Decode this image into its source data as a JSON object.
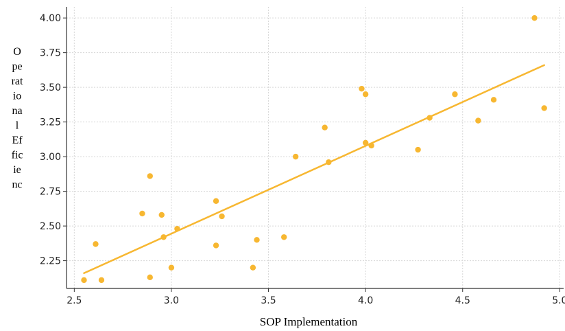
{
  "chart_data": {
    "type": "scatter",
    "title": "",
    "xlabel": "SOP Implementation",
    "ylabel": "Operational Efficienc",
    "ylabel_lines": [
      "O",
      "pe",
      "rat",
      "io",
      "na",
      "l",
      "Ef",
      "fic",
      "ie",
      "nc"
    ],
    "xlim": [
      2.46,
      5.02
    ],
    "ylim": [
      2.05,
      4.08
    ],
    "xticks": [
      2.5,
      3.0,
      3.5,
      4.0,
      4.5,
      5.0
    ],
    "xtick_labels": [
      "2.5",
      "3.0",
      "3.5",
      "4.0",
      "4.5",
      "5.0"
    ],
    "yticks": [
      2.25,
      2.5,
      2.75,
      3.0,
      3.25,
      3.5,
      3.75,
      4.0
    ],
    "ytick_labels": [
      "2.25",
      "2.50",
      "2.75",
      "3.00",
      "3.25",
      "3.50",
      "3.75",
      "4.00"
    ],
    "grid": true,
    "points": [
      {
        "x": 2.55,
        "y": 2.11
      },
      {
        "x": 2.61,
        "y": 2.37
      },
      {
        "x": 2.64,
        "y": 2.11
      },
      {
        "x": 2.85,
        "y": 2.59
      },
      {
        "x": 2.89,
        "y": 2.86
      },
      {
        "x": 2.89,
        "y": 2.13
      },
      {
        "x": 2.95,
        "y": 2.58
      },
      {
        "x": 2.96,
        "y": 2.42
      },
      {
        "x": 3.0,
        "y": 2.2
      },
      {
        "x": 3.03,
        "y": 2.48
      },
      {
        "x": 3.23,
        "y": 2.68
      },
      {
        "x": 3.23,
        "y": 2.36
      },
      {
        "x": 3.26,
        "y": 2.57
      },
      {
        "x": 3.42,
        "y": 2.2
      },
      {
        "x": 3.44,
        "y": 2.4
      },
      {
        "x": 3.58,
        "y": 2.42
      },
      {
        "x": 3.64,
        "y": 3.0
      },
      {
        "x": 3.79,
        "y": 3.21
      },
      {
        "x": 3.81,
        "y": 2.96
      },
      {
        "x": 3.98,
        "y": 3.49
      },
      {
        "x": 4.0,
        "y": 3.45
      },
      {
        "x": 4.0,
        "y": 3.1
      },
      {
        "x": 4.03,
        "y": 3.08
      },
      {
        "x": 4.27,
        "y": 3.05
      },
      {
        "x": 4.33,
        "y": 3.28
      },
      {
        "x": 4.46,
        "y": 3.45
      },
      {
        "x": 4.58,
        "y": 3.26
      },
      {
        "x": 4.66,
        "y": 3.41
      },
      {
        "x": 4.87,
        "y": 4.0
      },
      {
        "x": 4.92,
        "y": 3.35
      }
    ],
    "trendline": {
      "x": [
        2.55,
        4.92
      ],
      "y": [
        2.16,
        3.66
      ]
    },
    "colors": {
      "points": "#f7b731",
      "trendline": "#f7b731",
      "grid": "#d8d8d8",
      "axis": "#333333"
    }
  }
}
